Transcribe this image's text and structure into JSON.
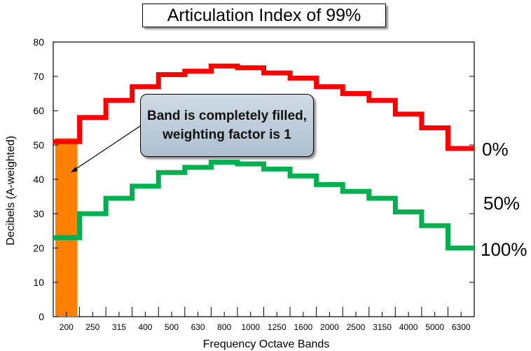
{
  "chart_data": {
    "type": "line",
    "title": "Articulation Index of 99%",
    "xlabel": "Frequency Octave Bands",
    "ylabel": "Decibels (A-weighted)",
    "ylim": [
      0,
      80
    ],
    "y_ticks": [
      "0",
      "10",
      "20",
      "30",
      "40",
      "50",
      "60",
      "70",
      "80"
    ],
    "categories": [
      "200",
      "250",
      "315",
      "400",
      "500",
      "630",
      "800",
      "1000",
      "1250",
      "1600",
      "2000",
      "2500",
      "3150",
      "4000",
      "5000",
      "6300"
    ],
    "series": [
      {
        "label": "0%",
        "color": "#ff0000",
        "values": [
          51,
          58,
          63,
          67,
          70.5,
          71.5,
          73,
          72.5,
          71,
          69.5,
          67,
          65,
          63,
          59,
          55,
          49
        ]
      },
      {
        "label": "100%",
        "color": "#00b050",
        "values": [
          23,
          30,
          34.5,
          38,
          42,
          43.5,
          45,
          44.5,
          43,
          41,
          38.5,
          36.5,
          34.5,
          30.5,
          26.5,
          20
        ]
      }
    ],
    "right_labels": [
      "0%",
      "50%",
      "100%"
    ],
    "highlight": {
      "category": "200",
      "from": 0,
      "to": 52,
      "color": "#ff8000"
    },
    "callout": "Band is completely filled, weighting factor is 1",
    "grid": false
  }
}
